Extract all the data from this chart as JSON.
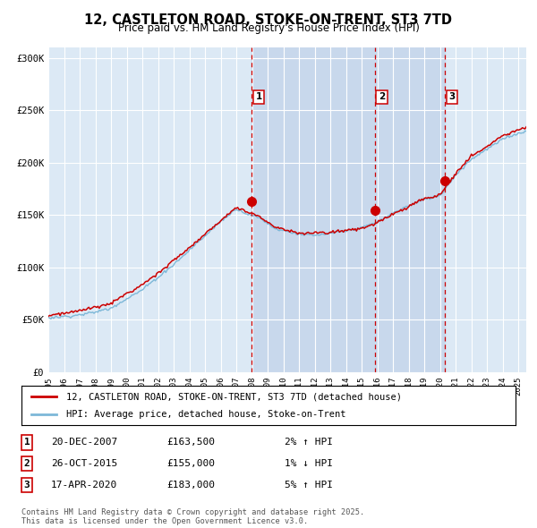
{
  "title": "12, CASTLETON ROAD, STOKE-ON-TRENT, ST3 7TD",
  "subtitle": "Price paid vs. HM Land Registry's House Price Index (HPI)",
  "background_color": "#ffffff",
  "plot_bg_color": "#dce9f5",
  "grid_color": "#ffffff",
  "ylim": [
    0,
    310000
  ],
  "yticks": [
    0,
    50000,
    100000,
    150000,
    200000,
    250000,
    300000
  ],
  "ytick_labels": [
    "£0",
    "£50K",
    "£100K",
    "£150K",
    "£200K",
    "£250K",
    "£300K"
  ],
  "xstart_year": 1995,
  "xend_year": 2025,
  "sale_dates_dec": [
    2007.97,
    2015.82,
    2020.29
  ],
  "sale_prices": [
    163500,
    155000,
    183000
  ],
  "sale_labels": [
    "1",
    "2",
    "3"
  ],
  "hpi_line_color": "#7db8d8",
  "price_line_color": "#cc0000",
  "sale_dot_color": "#cc0000",
  "vline_color": "#cc0000",
  "shade_color": "#c8d8ec",
  "legend1_label": "12, CASTLETON ROAD, STOKE-ON-TRENT, ST3 7TD (detached house)",
  "legend2_label": "HPI: Average price, detached house, Stoke-on-Trent",
  "annotation_rows": [
    {
      "num": "1",
      "date": "20-DEC-2007",
      "price": "£163,500",
      "pct": "2%",
      "arrow": "↑",
      "hpi": "HPI"
    },
    {
      "num": "2",
      "date": "26-OCT-2015",
      "price": "£155,000",
      "pct": "1%",
      "arrow": "↓",
      "hpi": "HPI"
    },
    {
      "num": "3",
      "date": "17-APR-2020",
      "price": "£183,000",
      "pct": "5%",
      "arrow": "↑",
      "hpi": "HPI"
    }
  ],
  "footnote": "Contains HM Land Registry data © Crown copyright and database right 2025.\nThis data is licensed under the Open Government Licence v3.0."
}
